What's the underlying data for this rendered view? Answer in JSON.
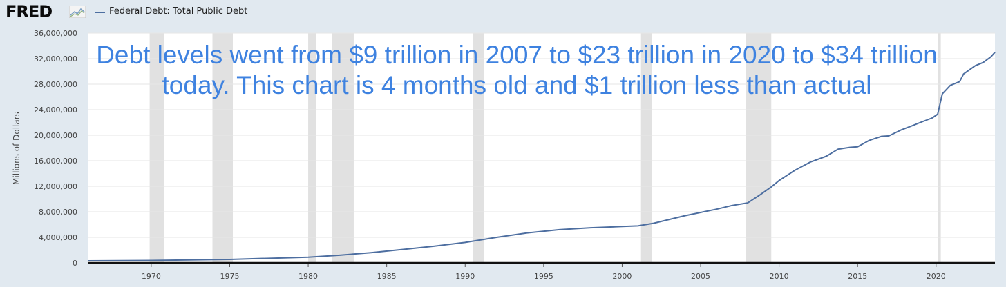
{
  "header": {
    "logo": "FRED",
    "legend_label": "Federal Debt: Total Public Debt",
    "logo_icon": "line-chart-icon"
  },
  "overlay_text": "Debt levels went from $9 trillion in 2007 to $23 trillion in 2020 to $34 trillion today. This chart is 4 months old and $1 trillion less than actual",
  "colors": {
    "background": "#e1e9f0",
    "plot_background": "#ffffff",
    "series_line": "#4d6ea0",
    "recession_band": "#e1e1e1",
    "overlay_text": "#3e82e0"
  },
  "chart_data": {
    "type": "line",
    "title": "",
    "xlabel": "",
    "ylabel": "Millions of Dollars",
    "xlim": [
      1966,
      2023.75
    ],
    "ylim": [
      0,
      36000000
    ],
    "yticks": [
      0,
      4000000,
      8000000,
      12000000,
      16000000,
      20000000,
      24000000,
      28000000,
      32000000,
      36000000
    ],
    "ytick_labels": [
      "0",
      "4,000,000",
      "8,000,000",
      "12,000,000",
      "16,000,000",
      "20,000,000",
      "24,000,000",
      "28,000,000",
      "32,000,000",
      "36,000,000"
    ],
    "xticks": [
      1970,
      1975,
      1980,
      1985,
      1990,
      1995,
      2000,
      2005,
      2010,
      2015,
      2020
    ],
    "xtick_labels": [
      "1970",
      "1975",
      "1980",
      "1985",
      "1990",
      "1995",
      "2000",
      "2005",
      "2010",
      "2015",
      "2020"
    ],
    "grid": true,
    "recessions": [
      [
        1969.9,
        1970.8
      ],
      [
        1973.9,
        1975.2
      ],
      [
        1980.0,
        1980.5
      ],
      [
        1981.5,
        1982.9
      ],
      [
        1990.5,
        1991.2
      ],
      [
        2001.2,
        2001.9
      ],
      [
        2007.9,
        2009.5
      ],
      [
        2020.1,
        2020.3
      ]
    ],
    "series": [
      {
        "name": "Federal Debt: Total Public Debt",
        "x": [
          1966,
          1970,
          1975,
          1980,
          1982,
          1984,
          1986,
          1988,
          1990,
          1992,
          1994,
          1996,
          1998,
          2000,
          2001,
          2002,
          2004,
          2006,
          2007,
          2008,
          2008.75,
          2009.5,
          2010,
          2011,
          2012,
          2013,
          2013.75,
          2014.5,
          2015,
          2015.75,
          2016.5,
          2017,
          2017.75,
          2018.5,
          2019,
          2019.75,
          2020.1,
          2020.4,
          2020.9,
          2021.5,
          2021.75,
          2022.5,
          2023,
          2023.5,
          2023.75
        ],
        "values": [
          320000,
          380000,
          540000,
          900000,
          1200000,
          1600000,
          2100000,
          2600000,
          3200000,
          4000000,
          4700000,
          5200000,
          5500000,
          5700000,
          5800000,
          6200000,
          7400000,
          8400000,
          9000000,
          9400000,
          10600000,
          11900000,
          12900000,
          14500000,
          15800000,
          16700000,
          17800000,
          18100000,
          18200000,
          19200000,
          19800000,
          19900000,
          20800000,
          21500000,
          22000000,
          22700000,
          23300000,
          26500000,
          27800000,
          28400000,
          29600000,
          30900000,
          31400000,
          32300000,
          33000000
        ]
      }
    ]
  }
}
